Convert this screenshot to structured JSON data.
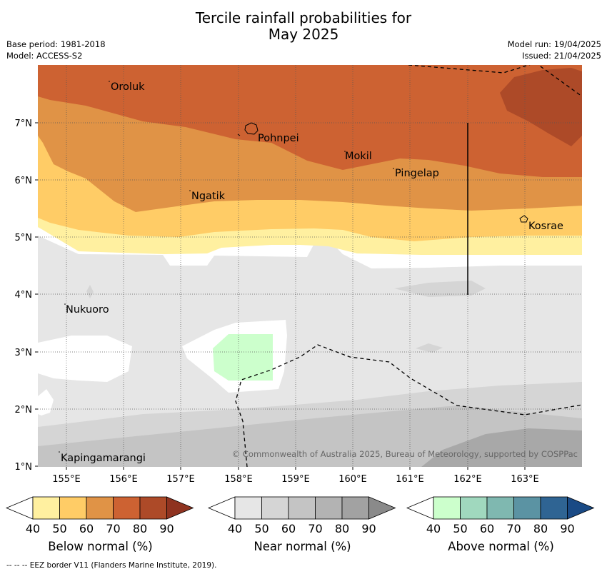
{
  "title": {
    "line1": "Tercile rainfall probabilities for",
    "line2": "May 2025"
  },
  "meta": {
    "base_period": "Base period: 1981-2018",
    "model": "Model: ACCESS-S2",
    "model_run": "Model run: 19/04/2025",
    "issued": "Issued: 21/04/2025"
  },
  "map": {
    "lon_ticks": [
      "155°E",
      "156°E",
      "157°E",
      "158°E",
      "159°E",
      "160°E",
      "161°E",
      "162°E",
      "163°E"
    ],
    "lat_ticks": [
      "1°N",
      "2°N",
      "3°N",
      "4°N",
      "5°N",
      "6°N",
      "7°N"
    ],
    "places": [
      "Oroluk",
      "Pohnpei",
      "Mokil",
      "Pingelap",
      "Ngatik",
      "Kosrae",
      "Nukuoro",
      "Kapingamarangi"
    ],
    "copyright": "© Commonwealth of Australia 2025, Bureau of Meteorology, supported by COSPPac",
    "colors": {
      "below_40": "#fff0a0",
      "below_50": "#ffcc66",
      "below_60": "#e09346",
      "below_70": "#cd6232",
      "below_80": "#ad4a28",
      "below_90": "#8f3320",
      "near_40": "#e6e6e6",
      "near_50": "#d5d5d5",
      "near_60": "#c4c4c4",
      "near_70": "#b3b3b3",
      "near_80": "#a2a2a2",
      "near_90": "#8a8a8a",
      "above_40": "#ccffcc",
      "above_50": "#a0d8be",
      "above_60": "#7fb8b0",
      "above_70": "#5b93a3",
      "above_80": "#2f6493",
      "above_90": "#1a4a85"
    }
  },
  "colorbars": {
    "below": {
      "label": "Below normal (%)",
      "ticks": [
        "40",
        "50",
        "60",
        "70",
        "80",
        "90"
      ],
      "colors": [
        "#fff0a0",
        "#ffcc66",
        "#e09346",
        "#cd6232",
        "#ad4a28",
        "#8f3320"
      ]
    },
    "near": {
      "label": "Near normal (%)",
      "ticks": [
        "40",
        "50",
        "60",
        "70",
        "80",
        "90"
      ],
      "colors": [
        "#e6e6e6",
        "#d5d5d5",
        "#c4c4c4",
        "#b3b3b3",
        "#a2a2a2",
        "#8a8a8a"
      ]
    },
    "above": {
      "label": "Above normal (%)",
      "ticks": [
        "40",
        "50",
        "60",
        "70",
        "80",
        "90"
      ],
      "colors": [
        "#ccffcc",
        "#a0d8be",
        "#7fb8b0",
        "#5b93a3",
        "#2f6493",
        "#1a4a85"
      ]
    }
  },
  "footnote": "--  --  -- EEZ border V11 (Flanders Marine Institute, 2019)."
}
